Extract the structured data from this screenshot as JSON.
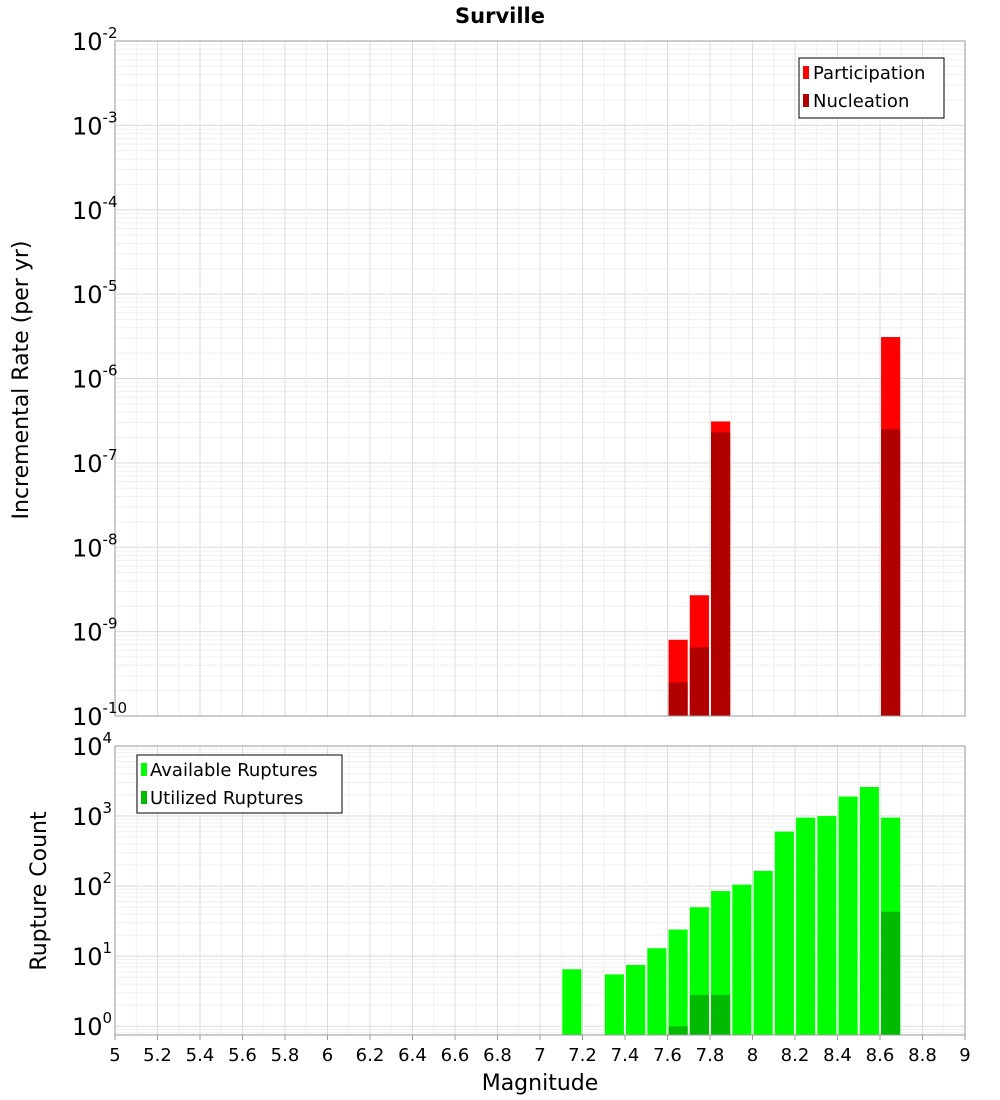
{
  "chart_data": [
    {
      "type": "bar",
      "title": "Surville",
      "xlabel": "",
      "ylabel": "Incremental Rate (per yr)",
      "yscale": "log",
      "xlim": [
        5,
        9
      ],
      "ylim": [
        1e-10,
        0.01
      ],
      "ytick_exponents": [
        "-10",
        "-9",
        "-8",
        "-7",
        "-6",
        "-5",
        "-4",
        "-3",
        "-2"
      ],
      "legend": {
        "position": "top-right",
        "entries": [
          "Participation",
          "Nucleation"
        ]
      },
      "grid": true,
      "bar_width": 0.09,
      "series": [
        {
          "name": "Participation",
          "color": "#ff0000",
          "x": [
            7.65,
            7.75,
            7.85,
            8.65
          ],
          "values": [
            8e-10,
            2.7e-09,
            3.1e-07,
            3.1e-06
          ]
        },
        {
          "name": "Nucleation",
          "color": "#b00000",
          "x": [
            7.65,
            7.75,
            7.85,
            8.65
          ],
          "values": [
            2.5e-10,
            6.5e-10,
            2.3e-07,
            2.5e-07
          ]
        }
      ]
    },
    {
      "type": "bar",
      "title": "",
      "xlabel": "Magnitude",
      "ylabel": "Rupture Count",
      "yscale": "log",
      "xlim": [
        5,
        9
      ],
      "ylim": [
        0.75,
        10000
      ],
      "ytick_exponents": [
        "0",
        "1",
        "2",
        "3",
        "4"
      ],
      "xticks": [
        "5",
        "5.2",
        "5.4",
        "5.6",
        "5.8",
        "6",
        "6.2",
        "6.4",
        "6.6",
        "6.8",
        "7",
        "7.2",
        "7.4",
        "7.6",
        "7.8",
        "8",
        "8.2",
        "8.4",
        "8.6",
        "8.8",
        "9"
      ],
      "legend": {
        "position": "top-left",
        "entries": [
          "Available Ruptures",
          "Utilized Ruptures"
        ]
      },
      "grid": true,
      "bar_width": 0.09,
      "series": [
        {
          "name": "Available Ruptures",
          "color": "#00ff00",
          "x": [
            7.15,
            7.35,
            7.45,
            7.55,
            7.65,
            7.75,
            7.85,
            7.95,
            8.05,
            8.15,
            8.25,
            8.35,
            8.45,
            8.55,
            8.65
          ],
          "values": [
            6.5,
            5.5,
            7.5,
            13,
            24,
            50,
            85,
            105,
            165,
            600,
            950,
            1000,
            1900,
            2600,
            950
          ]
        },
        {
          "name": "Utilized Ruptures",
          "color": "#00bb00",
          "x": [
            7.65,
            7.75,
            7.85,
            8.65
          ],
          "values": [
            1,
            2.8,
            2.8,
            43
          ]
        }
      ]
    }
  ]
}
